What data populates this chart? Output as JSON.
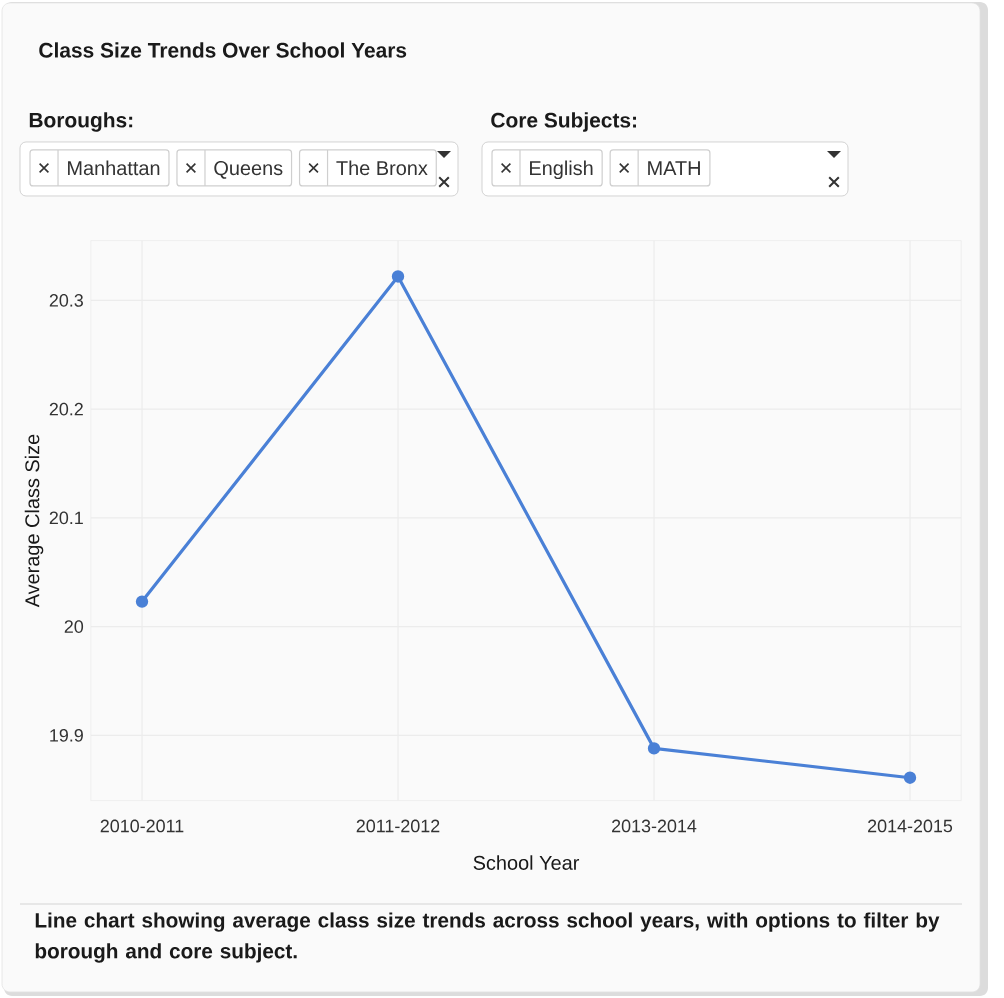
{
  "chart_data": {
    "type": "line",
    "title": "Class Size Trends Over School Years",
    "xlabel": "School Year",
    "ylabel": "Average Class Size",
    "categories": [
      "2010-2011",
      "2011-2012",
      "2013-2014",
      "2014-2015"
    ],
    "values": [
      20.023,
      20.322,
      19.888,
      19.861
    ],
    "color": "#4a80d6",
    "ylim": [
      19.84,
      20.355
    ],
    "yticks": [
      19.9,
      20,
      20.1,
      20.2,
      20.3
    ],
    "grid": true,
    "marker": "circle",
    "annotations": [
      "Boroughs:",
      "Manhattan",
      "Queens",
      "The Bronx",
      "Core Subjects:",
      "English",
      "MATH",
      "Line chart showing average class size trends across school years, with options to filter by borough and core subject."
    ]
  }
}
